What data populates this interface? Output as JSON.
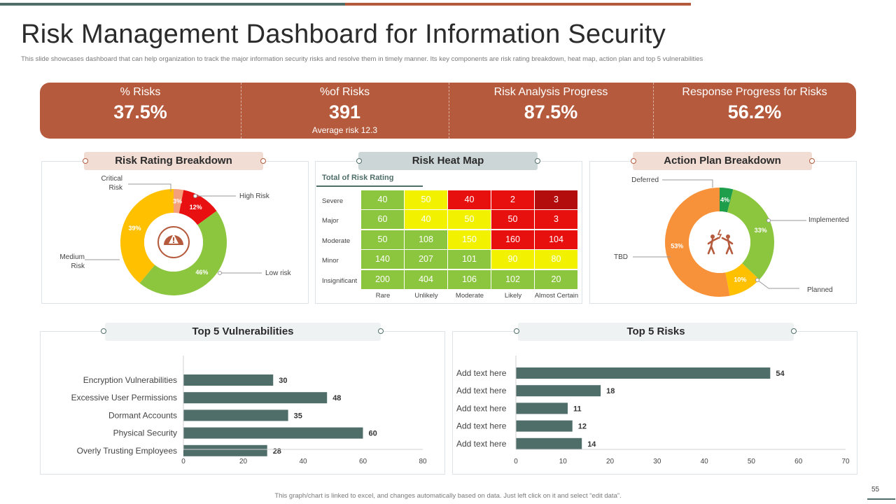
{
  "header": {
    "title": "Risk Management Dashboard for Information Security",
    "subtitle": "This slide showcases dashboard that can help organization to track the major information security risks and resolve them in timely manner. Its key components are risk rating breakdown, heat map, action plan and top 5 vulnerabilities"
  },
  "colors": {
    "brand_rust": "#b55a3c",
    "brand_teal": "#4f6e6a",
    "bar": "#4f6e6a"
  },
  "kpis": [
    {
      "label": "% Risks",
      "value": "37.5%",
      "sub": ""
    },
    {
      "label": "%of Risks",
      "value": "391",
      "sub": "Average risk 12.3"
    },
    {
      "label": "Risk Analysis Progress",
      "value": "87.5%",
      "sub": ""
    },
    {
      "label": "Response Progress for Risks",
      "value": "56.2%",
      "sub": ""
    }
  ],
  "risk_rating": {
    "title": "Risk Rating Breakdown",
    "icon": "gauge-warning-icon",
    "labels": {
      "critical_line1": "Critical",
      "critical_line2": "Risk",
      "high": "High Risk",
      "medium_line1": "Medium",
      "medium_line2": "Risk",
      "low": "Low risk"
    }
  },
  "heat_map": {
    "title": "Risk Heat Map",
    "subtitle": "Total of Risk Rating",
    "rows": [
      "Severe",
      "Major",
      "Moderate",
      "Minor",
      "Insignificant"
    ],
    "cols": [
      "Rare",
      "Unlikely",
      "Moderate",
      "Likely",
      "Almost Certain"
    ],
    "values": [
      [
        "40",
        "50",
        "40",
        "2",
        "3"
      ],
      [
        "60",
        "40",
        "50",
        "50",
        "3"
      ],
      [
        "50",
        "108",
        "150",
        "160",
        "104"
      ],
      [
        "140",
        "207",
        "101",
        "90",
        "80"
      ],
      [
        "200",
        "404",
        "106",
        "102",
        "20"
      ]
    ],
    "cell_colors": [
      [
        "#8cc63f",
        "#f2f200",
        "#e80f0f",
        "#e80f0f",
        "#b30d0d"
      ],
      [
        "#8cc63f",
        "#f2f200",
        "#f2f200",
        "#e80f0f",
        "#e80f0f"
      ],
      [
        "#8cc63f",
        "#8cc63f",
        "#f2f200",
        "#e80f0f",
        "#e80f0f"
      ],
      [
        "#8cc63f",
        "#8cc63f",
        "#8cc63f",
        "#f2f200",
        "#f2f200"
      ],
      [
        "#8cc63f",
        "#8cc63f",
        "#8cc63f",
        "#8cc63f",
        "#8cc63f"
      ]
    ]
  },
  "action_plan": {
    "title": "Action Plan Breakdown",
    "icon": "people-conflict-icon",
    "labels": {
      "deferred": "Deferred",
      "implemented": "Implemented",
      "tbd": "TBD",
      "planned": "Planned"
    }
  },
  "vulnerabilities_panel": {
    "title": "Top 5 Vulnerabilities"
  },
  "risks_panel": {
    "title": "Top 5 Risks"
  },
  "chart_data": [
    {
      "type": "pie",
      "title": "Risk Rating Breakdown",
      "donut": true,
      "categories": [
        "Critical Risk",
        "High Risk",
        "Low risk",
        "Medium Risk"
      ],
      "values": [
        3,
        12,
        46,
        39
      ],
      "labels": [
        "3%",
        "12%",
        "46%",
        "39%"
      ],
      "colors": [
        "#f4a07a",
        "#e81010",
        "#8cc63f",
        "#ffc000"
      ]
    },
    {
      "type": "heatmap",
      "title": "Risk Heat Map",
      "x": [
        "Rare",
        "Unlikely",
        "Moderate",
        "Likely",
        "Almost Certain"
      ],
      "y": [
        "Severe",
        "Major",
        "Moderate",
        "Minor",
        "Insignificant"
      ],
      "values": [
        [
          40,
          50,
          40,
          2,
          3
        ],
        [
          60,
          40,
          50,
          50,
          3
        ],
        [
          50,
          108,
          150,
          160,
          104
        ],
        [
          140,
          207,
          101,
          90,
          80
        ],
        [
          200,
          404,
          106,
          102,
          20
        ]
      ]
    },
    {
      "type": "pie",
      "title": "Action Plan Breakdown",
      "donut": true,
      "categories": [
        "Deferred",
        "Implemented",
        "Planned",
        "TBD"
      ],
      "values": [
        4,
        33,
        10,
        53
      ],
      "labels": [
        "4%",
        "33%",
        "10%",
        "53%"
      ],
      "colors": [
        "#1e9e4a",
        "#8cc63f",
        "#ffc000",
        "#f7923a"
      ]
    },
    {
      "type": "bar",
      "orientation": "horizontal",
      "title": "Top 5 Vulnerabilities",
      "categories": [
        "Encryption Vulnerabilities",
        "Excessive User Permissions",
        "Dormant Accounts",
        "Physical Security",
        "Overly Trusting Employees"
      ],
      "values": [
        30,
        48,
        35,
        60,
        28
      ],
      "xlim": [
        0,
        80
      ],
      "ticks": [
        0,
        20,
        40,
        60,
        80
      ]
    },
    {
      "type": "bar",
      "orientation": "horizontal",
      "title": "Top 5 Risks",
      "categories": [
        "Add text here",
        "Add text here",
        "Add text here",
        "Add text here",
        "Add text here"
      ],
      "values": [
        54,
        18,
        11,
        12,
        14
      ],
      "xlim": [
        0,
        70
      ],
      "ticks": [
        0,
        10,
        20,
        30,
        40,
        50,
        60,
        70
      ]
    }
  ],
  "footer": {
    "note": "This graph/chart is linked to excel, and changes automatically based on data. Just left click on it and select “edit data”.",
    "page": "55"
  }
}
